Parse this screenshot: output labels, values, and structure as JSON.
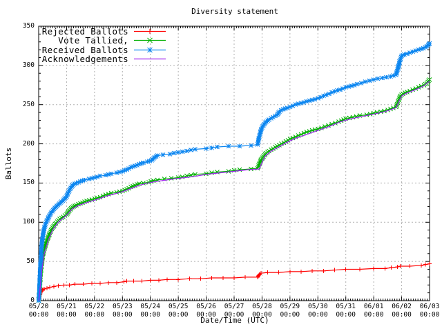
{
  "title": "Diversity statement",
  "chart_data": {
    "type": "line",
    "title": "Diversity statement",
    "xlabel": "Date/Time (UTC)",
    "ylabel": "Ballots",
    "ylim": [
      0,
      350
    ],
    "xlim_days": [
      0,
      14
    ],
    "grid": true,
    "legend_position": "top-left",
    "y_ticks": [
      0,
      50,
      100,
      150,
      200,
      250,
      300,
      350
    ],
    "y_tick_labels": [
      "0",
      "50",
      "100",
      "150",
      "200",
      "250",
      "300",
      "350"
    ],
    "x_tick_dates": [
      "05/20",
      "05/21",
      "05/22",
      "05/23",
      "05/24",
      "05/25",
      "05/26",
      "05/27",
      "05/28",
      "05/29",
      "05/30",
      "05/31",
      "06/01",
      "06/02",
      "06/03"
    ],
    "x_tick_times": [
      "00:00",
      "00:00",
      "00:00",
      "00:00",
      "00:00",
      "00:00",
      "00:00",
      "00:00",
      "00:00",
      "00:00",
      "00:00",
      "00:00",
      "00:00",
      "00:00",
      "00:00"
    ],
    "colors": {
      "rejected": "#ff0000",
      "tallied": "#00b000",
      "received": "#0c86f0",
      "acknowledgements": "#a020f0",
      "grid": "#b0b0b0",
      "border": "#000000"
    },
    "series": [
      {
        "name": "Rejected Ballots",
        "color": "#ff0000",
        "marker": "plus",
        "points": [
          [
            0,
            0
          ],
          [
            0.03,
            5
          ],
          [
            0.06,
            9
          ],
          [
            0.1,
            12
          ],
          [
            0.15,
            14
          ],
          [
            0.2,
            15
          ],
          [
            0.3,
            16
          ],
          [
            0.4,
            17
          ],
          [
            0.55,
            18
          ],
          [
            0.7,
            19
          ],
          [
            0.9,
            20
          ],
          [
            1.1,
            20
          ],
          [
            1.3,
            21
          ],
          [
            1.6,
            21
          ],
          [
            1.9,
            22
          ],
          [
            2.2,
            22
          ],
          [
            2.5,
            23
          ],
          [
            2.8,
            23
          ],
          [
            3.05,
            24
          ],
          [
            3.15,
            25
          ],
          [
            3.4,
            25
          ],
          [
            3.7,
            25
          ],
          [
            4.0,
            26
          ],
          [
            4.3,
            26
          ],
          [
            4.6,
            27
          ],
          [
            5.0,
            27
          ],
          [
            5.4,
            28
          ],
          [
            5.8,
            28
          ],
          [
            6.2,
            29
          ],
          [
            6.6,
            29
          ],
          [
            7.0,
            29
          ],
          [
            7.4,
            30
          ],
          [
            7.84,
            30
          ],
          [
            7.88,
            32
          ],
          [
            7.92,
            34
          ],
          [
            7.97,
            35
          ],
          [
            8.2,
            36
          ],
          [
            8.6,
            36
          ],
          [
            9.0,
            37
          ],
          [
            9.4,
            37
          ],
          [
            9.8,
            38
          ],
          [
            10.2,
            38
          ],
          [
            10.6,
            39
          ],
          [
            11.0,
            40
          ],
          [
            11.5,
            40
          ],
          [
            12.0,
            41
          ],
          [
            12.4,
            41
          ],
          [
            12.85,
            43
          ],
          [
            12.95,
            44
          ],
          [
            13.3,
            44
          ],
          [
            13.7,
            45
          ],
          [
            14.0,
            47
          ]
        ]
      },
      {
        "name": "Vote Tallied,",
        "color": "#00b000",
        "marker": "cross",
        "points": [
          [
            0,
            0
          ],
          [
            0.03,
            12
          ],
          [
            0.06,
            28
          ],
          [
            0.1,
            45
          ],
          [
            0.15,
            58
          ],
          [
            0.22,
            68
          ],
          [
            0.3,
            77
          ],
          [
            0.4,
            86
          ],
          [
            0.5,
            93
          ],
          [
            0.62,
            99
          ],
          [
            0.75,
            104
          ],
          [
            0.88,
            107
          ],
          [
            1.0,
            110
          ],
          [
            1.08,
            114
          ],
          [
            1.16,
            118
          ],
          [
            1.25,
            120
          ],
          [
            1.35,
            122
          ],
          [
            1.5,
            124
          ],
          [
            1.65,
            126
          ],
          [
            1.8,
            128
          ],
          [
            2.0,
            130
          ],
          [
            2.2,
            132
          ],
          [
            2.4,
            135
          ],
          [
            2.6,
            137
          ],
          [
            2.8,
            138
          ],
          [
            3.0,
            140
          ],
          [
            3.15,
            142
          ],
          [
            3.3,
            145
          ],
          [
            3.45,
            147
          ],
          [
            3.6,
            149
          ],
          [
            3.75,
            150
          ],
          [
            3.95,
            151
          ],
          [
            4.1,
            153
          ],
          [
            4.25,
            154
          ],
          [
            4.5,
            155
          ],
          [
            4.75,
            156
          ],
          [
            5.0,
            157
          ],
          [
            5.3,
            159
          ],
          [
            5.6,
            161
          ],
          [
            6.0,
            162
          ],
          [
            6.4,
            164
          ],
          [
            6.8,
            165
          ],
          [
            7.2,
            167
          ],
          [
            7.6,
            168
          ],
          [
            7.84,
            169
          ],
          [
            7.9,
            174
          ],
          [
            7.97,
            180
          ],
          [
            8.05,
            184
          ],
          [
            8.15,
            188
          ],
          [
            8.25,
            191
          ],
          [
            8.4,
            194
          ],
          [
            8.55,
            197
          ],
          [
            8.7,
            200
          ],
          [
            8.85,
            203
          ],
          [
            9.0,
            206
          ],
          [
            9.2,
            209
          ],
          [
            9.4,
            212
          ],
          [
            9.6,
            215
          ],
          [
            9.8,
            217
          ],
          [
            10.0,
            219
          ],
          [
            10.25,
            222
          ],
          [
            10.5,
            225
          ],
          [
            10.75,
            228
          ],
          [
            11.0,
            232
          ],
          [
            11.25,
            234
          ],
          [
            11.5,
            236
          ],
          [
            11.75,
            237
          ],
          [
            12.0,
            239
          ],
          [
            12.25,
            241
          ],
          [
            12.5,
            243
          ],
          [
            12.8,
            247
          ],
          [
            12.88,
            254
          ],
          [
            12.95,
            261
          ],
          [
            13.05,
            264
          ],
          [
            13.2,
            266
          ],
          [
            13.4,
            269
          ],
          [
            13.6,
            272
          ],
          [
            13.8,
            275
          ],
          [
            13.9,
            277
          ],
          [
            14.0,
            282
          ]
        ]
      },
      {
        "name": "Received Ballots",
        "color": "#0c86f0",
        "marker": "star",
        "points": [
          [
            0,
            0
          ],
          [
            0.02,
            10
          ],
          [
            0.04,
            28
          ],
          [
            0.06,
            45
          ],
          [
            0.09,
            62
          ],
          [
            0.12,
            75
          ],
          [
            0.16,
            85
          ],
          [
            0.2,
            93
          ],
          [
            0.27,
            100
          ],
          [
            0.35,
            106
          ],
          [
            0.45,
            112
          ],
          [
            0.55,
            117
          ],
          [
            0.65,
            121
          ],
          [
            0.78,
            125
          ],
          [
            0.9,
            129
          ],
          [
            1.0,
            133
          ],
          [
            1.07,
            139
          ],
          [
            1.15,
            144
          ],
          [
            1.25,
            148
          ],
          [
            1.35,
            150
          ],
          [
            1.5,
            152
          ],
          [
            1.65,
            154
          ],
          [
            1.8,
            155
          ],
          [
            2.0,
            157
          ],
          [
            2.2,
            159
          ],
          [
            2.4,
            160
          ],
          [
            2.6,
            162
          ],
          [
            2.8,
            163
          ],
          [
            3.0,
            165
          ],
          [
            3.15,
            167
          ],
          [
            3.3,
            170
          ],
          [
            3.45,
            172
          ],
          [
            3.6,
            174
          ],
          [
            3.75,
            176
          ],
          [
            3.9,
            177
          ],
          [
            4.05,
            179
          ],
          [
            4.15,
            183
          ],
          [
            4.25,
            185
          ],
          [
            4.45,
            186
          ],
          [
            4.7,
            187
          ],
          [
            5.0,
            189
          ],
          [
            5.3,
            191
          ],
          [
            5.6,
            193
          ],
          [
            6.0,
            194
          ],
          [
            6.4,
            196
          ],
          [
            6.8,
            197
          ],
          [
            7.2,
            197
          ],
          [
            7.6,
            198
          ],
          [
            7.84,
            199
          ],
          [
            7.88,
            206
          ],
          [
            7.93,
            213
          ],
          [
            7.98,
            219
          ],
          [
            8.05,
            224
          ],
          [
            8.15,
            228
          ],
          [
            8.25,
            231
          ],
          [
            8.4,
            234
          ],
          [
            8.55,
            237
          ],
          [
            8.62,
            241
          ],
          [
            8.75,
            244
          ],
          [
            8.9,
            246
          ],
          [
            9.0,
            247
          ],
          [
            9.2,
            250
          ],
          [
            9.4,
            252
          ],
          [
            9.6,
            254
          ],
          [
            9.8,
            256
          ],
          [
            10.0,
            258
          ],
          [
            10.2,
            261
          ],
          [
            10.4,
            264
          ],
          [
            10.6,
            267
          ],
          [
            10.8,
            269
          ],
          [
            11.0,
            272
          ],
          [
            11.2,
            274
          ],
          [
            11.4,
            276
          ],
          [
            11.7,
            279
          ],
          [
            12.0,
            282
          ],
          [
            12.3,
            284
          ],
          [
            12.6,
            286
          ],
          [
            12.8,
            288
          ],
          [
            12.87,
            296
          ],
          [
            12.93,
            305
          ],
          [
            13.0,
            312
          ],
          [
            13.1,
            314
          ],
          [
            13.3,
            316
          ],
          [
            13.5,
            319
          ],
          [
            13.7,
            321
          ],
          [
            13.85,
            323
          ],
          [
            13.95,
            326
          ],
          [
            14.0,
            328
          ]
        ]
      },
      {
        "name": "Acknowledgements",
        "color": "#a020f0",
        "marker": "none",
        "points": [
          [
            0,
            0
          ],
          [
            0.05,
            15
          ],
          [
            0.1,
            35
          ],
          [
            0.2,
            60
          ],
          [
            0.35,
            78
          ],
          [
            0.5,
            90
          ],
          [
            0.7,
            100
          ],
          [
            0.9,
            106
          ],
          [
            1.0,
            109
          ],
          [
            1.2,
            117
          ],
          [
            1.4,
            121
          ],
          [
            1.7,
            125
          ],
          [
            2.0,
            128
          ],
          [
            2.4,
            133
          ],
          [
            2.8,
            137
          ],
          [
            3.0,
            139
          ],
          [
            3.3,
            143
          ],
          [
            3.6,
            147
          ],
          [
            3.9,
            150
          ],
          [
            4.2,
            152
          ],
          [
            4.6,
            154
          ],
          [
            5.0,
            156
          ],
          [
            5.5,
            158
          ],
          [
            6.0,
            161
          ],
          [
            6.5,
            163
          ],
          [
            7.0,
            165
          ],
          [
            7.5,
            167
          ],
          [
            7.9,
            168
          ],
          [
            8.0,
            176
          ],
          [
            8.1,
            184
          ],
          [
            8.3,
            190
          ],
          [
            8.6,
            196
          ],
          [
            8.9,
            202
          ],
          [
            9.2,
            207
          ],
          [
            9.6,
            212
          ],
          [
            10.0,
            217
          ],
          [
            10.4,
            222
          ],
          [
            10.8,
            228
          ],
          [
            11.2,
            232
          ],
          [
            11.6,
            235
          ],
          [
            12.0,
            238
          ],
          [
            12.4,
            241
          ],
          [
            12.8,
            246
          ],
          [
            12.9,
            254
          ],
          [
            13.0,
            261
          ],
          [
            13.2,
            265
          ],
          [
            13.5,
            269
          ],
          [
            13.8,
            274
          ],
          [
            14.0,
            280
          ]
        ]
      }
    ]
  }
}
